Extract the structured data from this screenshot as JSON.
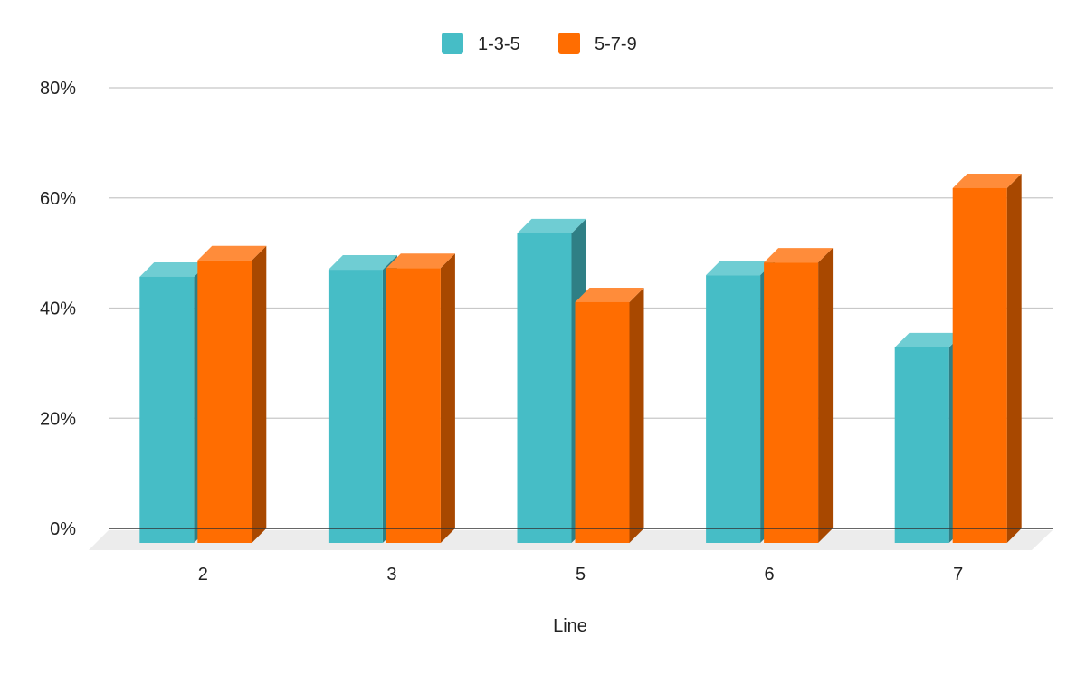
{
  "chart_data": {
    "type": "bar",
    "title": "",
    "xlabel": "Line",
    "ylabel": "",
    "categories": [
      "2",
      "3",
      "5",
      "6",
      "7"
    ],
    "series": [
      {
        "name": "1-3-5",
        "color": "#46BDC6",
        "top_color": "#6FCDD3",
        "side_color": "#2F7F85",
        "values": [
          48.3,
          49.6,
          56.2,
          48.6,
          35.5
        ]
      },
      {
        "name": "5-7-9",
        "color": "#FF6D01",
        "top_color": "#FF8C3A",
        "side_color": "#A84800",
        "values": [
          51.3,
          49.9,
          43.7,
          50.9,
          64.4
        ]
      }
    ],
    "ylim": [
      0,
      80
    ],
    "yticks": [
      0,
      20,
      40,
      60,
      80
    ],
    "ytick_labels": [
      "0%",
      "20%",
      "40%",
      "60%",
      "80%"
    ],
    "y_format": "percent",
    "grid": true,
    "legend_position": "top",
    "style": "3d"
  }
}
